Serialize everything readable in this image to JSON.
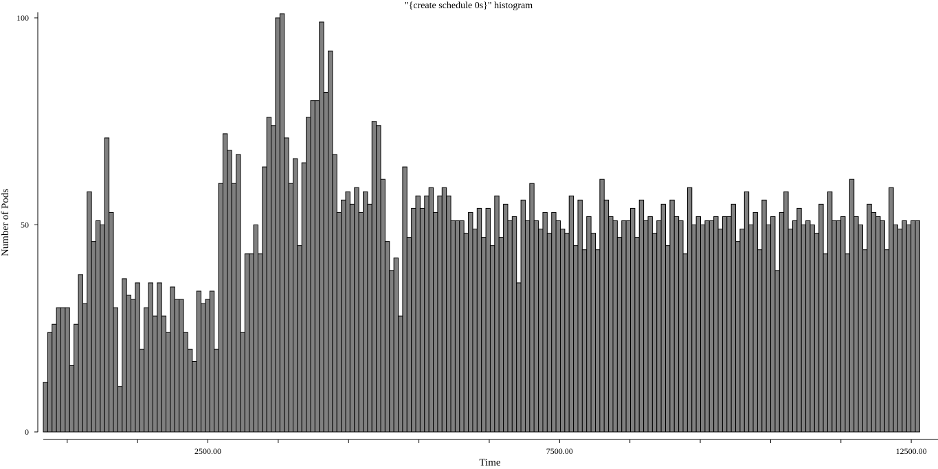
{
  "chart_data": {
    "type": "bar",
    "title": "\"{create schedule 0s}\" histogram",
    "xlabel": "Time",
    "ylabel": "Number of Pods",
    "x_tick_labels": [
      "2500.00",
      "7500.00",
      "12500.00"
    ],
    "y_tick_labels": [
      "0",
      "50",
      "100"
    ],
    "x_ticks": [
      2500,
      7500,
      12500
    ],
    "y_ticks": [
      0,
      50,
      100
    ],
    "xlim": [
      160,
      12880
    ],
    "ylim": [
      0,
      101
    ],
    "bin_start": 160,
    "bin_width": 62.3,
    "values": [
      12,
      24,
      26,
      30,
      30,
      30,
      16,
      26,
      38,
      31,
      58,
      46,
      51,
      50,
      71,
      53,
      30,
      11,
      37,
      33,
      32,
      36,
      20,
      30,
      36,
      28,
      36,
      28,
      24,
      35,
      32,
      32,
      24,
      20,
      17,
      34,
      31,
      32,
      34,
      20,
      60,
      72,
      68,
      60,
      67,
      24,
      43,
      43,
      50,
      43,
      64,
      76,
      74,
      100,
      101,
      71,
      60,
      66,
      45,
      65,
      76,
      80,
      80,
      99,
      82,
      92,
      67,
      53,
      56,
      58,
      55,
      59,
      53,
      58,
      55,
      75,
      74,
      61,
      46,
      39,
      42,
      28,
      64,
      47,
      54,
      57,
      54,
      57,
      59,
      53,
      57,
      59,
      57,
      51,
      51,
      51,
      48,
      53,
      49,
      54,
      47,
      54,
      45,
      57,
      47,
      55,
      51,
      52,
      36,
      56,
      51,
      60,
      51,
      49,
      53,
      48,
      53,
      51,
      49,
      48,
      57,
      45,
      56,
      44,
      52,
      48,
      44,
      61,
      56,
      52,
      51,
      47,
      51,
      51,
      54,
      47,
      56,
      51,
      52,
      48,
      51,
      55,
      45,
      56,
      52,
      51,
      43,
      59,
      50,
      52,
      50,
      51,
      51,
      52,
      49,
      52,
      52,
      55,
      46,
      49,
      58,
      50,
      53,
      44,
      56,
      50,
      52,
      39,
      53,
      58,
      49,
      51,
      54,
      50,
      51,
      50,
      48,
      55,
      43,
      58,
      51,
      51,
      52,
      43,
      61,
      52,
      50,
      44,
      55,
      53,
      52,
      51,
      44,
      59,
      50,
      49,
      51,
      50,
      51,
      51
    ]
  }
}
